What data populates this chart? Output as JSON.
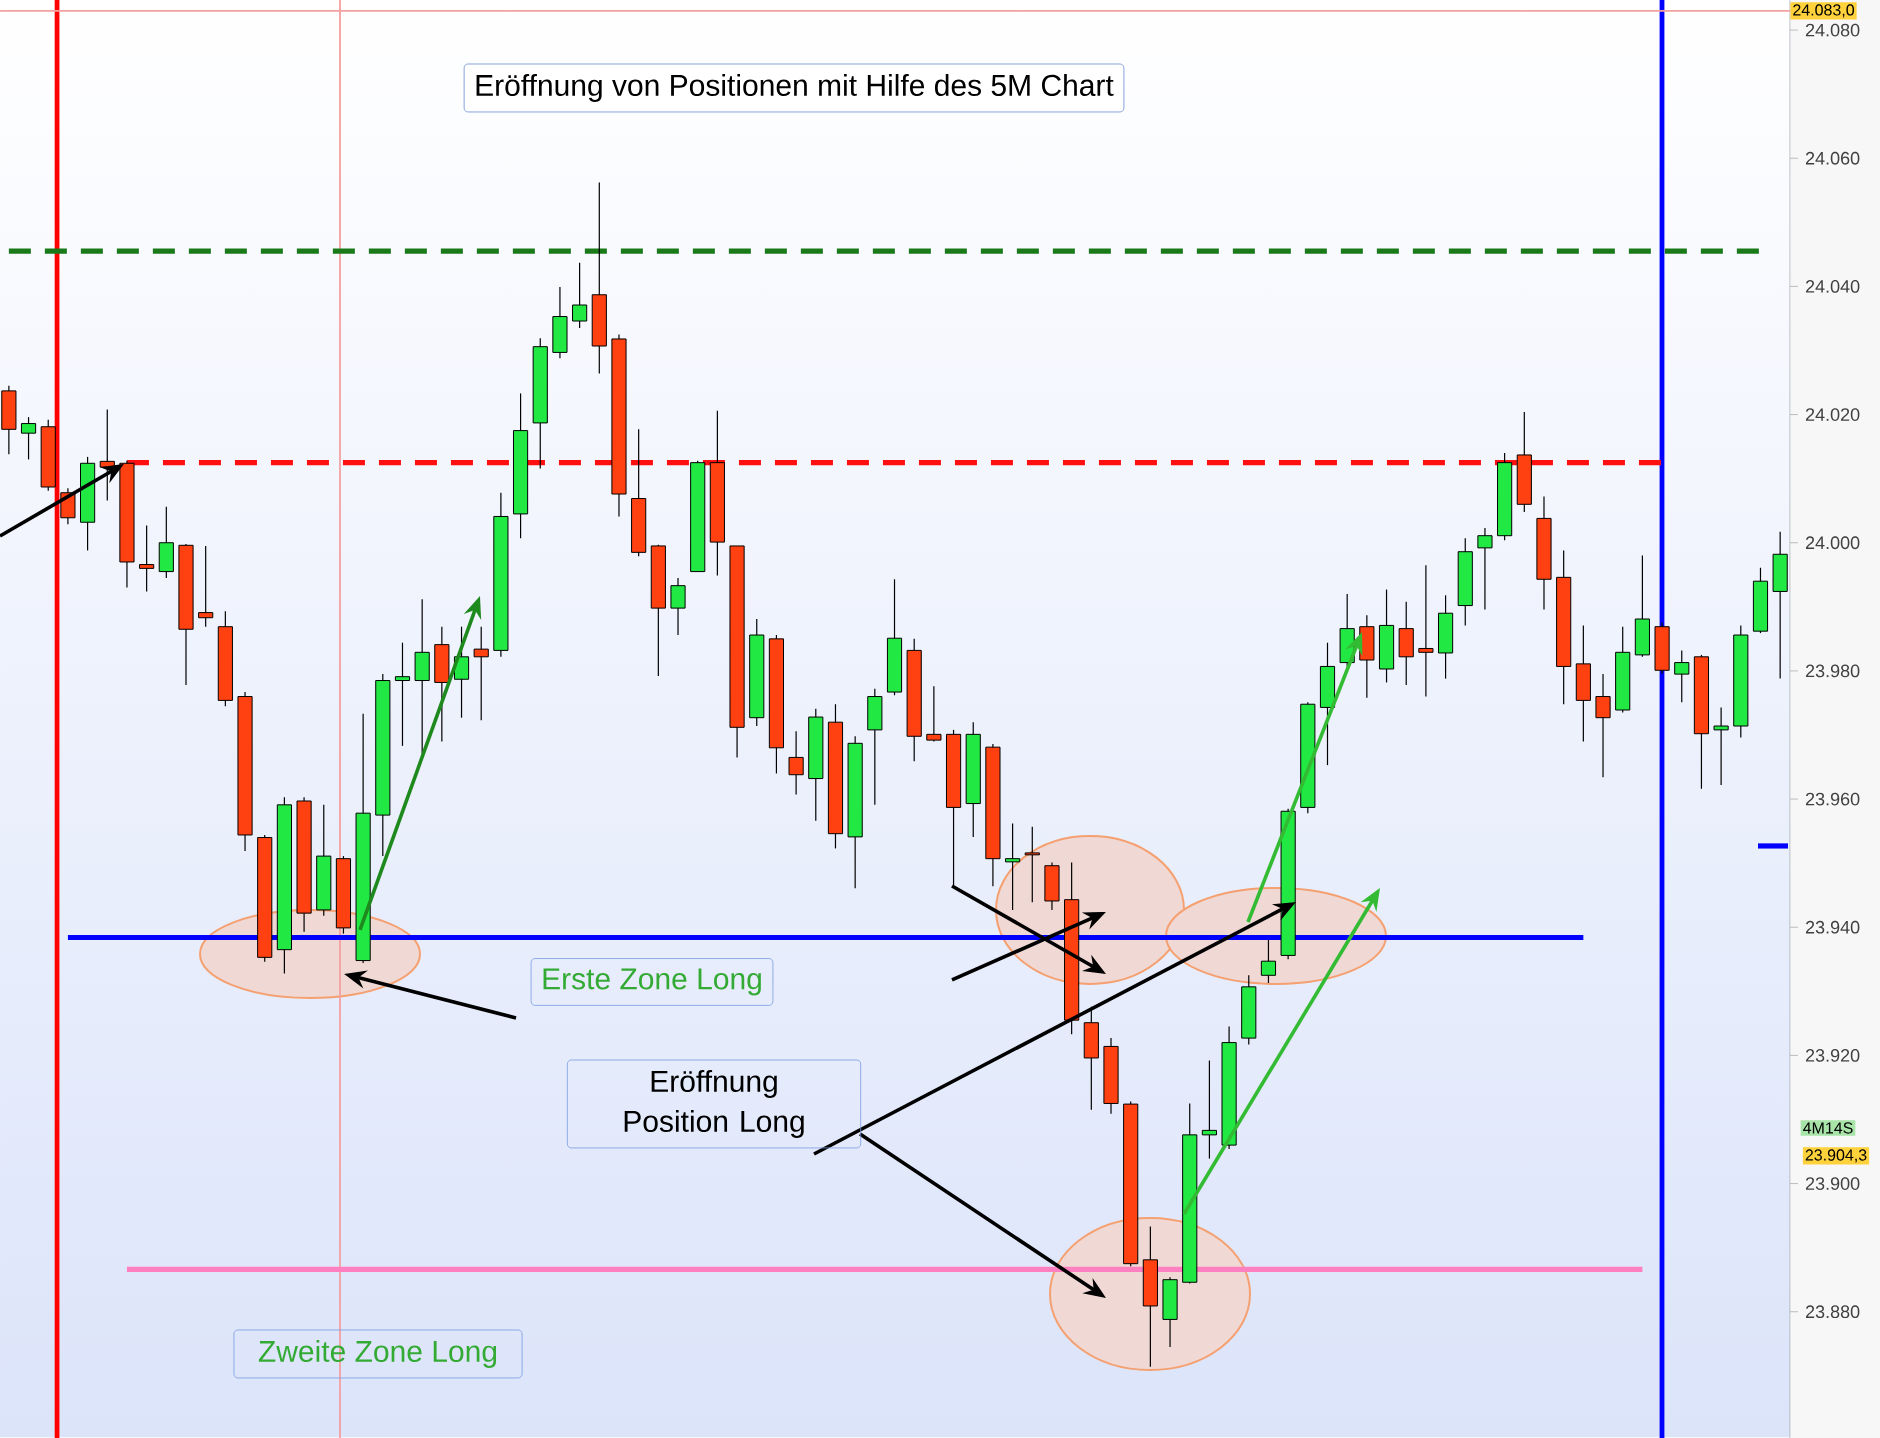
{
  "chart_data": {
    "type": "candlestick",
    "title": "Eröffnung von Positionen mit Hilfe des 5M Chart",
    "categories": [
      null,
      null,
      null,
      null,
      null,
      null,
      null,
      null,
      null,
      null,
      null,
      null,
      null,
      null,
      null,
      null,
      null,
      null,
      null,
      null,
      null,
      null,
      null,
      null,
      null,
      null,
      null,
      null,
      null,
      null,
      null,
      null,
      null,
      null,
      null,
      null,
      null,
      null,
      null,
      null,
      null,
      null,
      null,
      null,
      null,
      null,
      null,
      null,
      null,
      null,
      null,
      null,
      null,
      null,
      null,
      null,
      null,
      null,
      null,
      null,
      null,
      null,
      null,
      null,
      null,
      null,
      null,
      null,
      null,
      null,
      null,
      null,
      null,
      null,
      null,
      null,
      null,
      null,
      null,
      null,
      null,
      null,
      null,
      null,
      null,
      null,
      null,
      null,
      null,
      null,
      null
    ],
    "ohlc": [
      [
        24023.7,
        24024.5,
        24013.8,
        24017.7
      ],
      [
        24017.1,
        24019.6,
        24013.0,
        24018.6
      ],
      [
        24018.1,
        24019.2,
        24008.1,
        24008.7
      ],
      [
        24007.8,
        24008.5,
        24002.9,
        24003.9
      ],
      [
        24003.2,
        24013.4,
        23998.8,
        24012.4
      ],
      [
        24012.7,
        24020.8,
        24006.6,
        24011.8
      ],
      [
        24012.4,
        24012.8,
        23993.0,
        23997.0
      ],
      [
        23996.6,
        24002.7,
        23992.4,
        23996.0
      ],
      [
        23995.5,
        24005.6,
        23994.5,
        24000.0
      ],
      [
        23999.6,
        23999.8,
        23977.8,
        23986.5
      ],
      [
        23989.1,
        23999.5,
        23986.9,
        23988.3
      ],
      [
        23986.9,
        23989.3,
        23974.5,
        23975.4
      ],
      [
        23976.0,
        23976.7,
        23951.9,
        23954.4
      ],
      [
        23954.0,
        23954.4,
        23934.6,
        23935.3
      ],
      [
        23936.5,
        23960.3,
        23932.8,
        23959.1
      ],
      [
        23959.7,
        23960.3,
        23939.3,
        23942.2
      ],
      [
        23942.7,
        23959.1,
        23941.8,
        23951.1
      ],
      [
        23950.7,
        23951.1,
        23939.0,
        23939.9
      ],
      [
        23934.8,
        23973.3,
        23934.4,
        23957.8
      ],
      [
        23957.5,
        23979.5,
        23951.1,
        23978.5
      ],
      [
        23978.5,
        23984.4,
        23968.3,
        23979.1
      ],
      [
        23978.5,
        23991.2,
        23967.1,
        23982.9
      ],
      [
        23984.1,
        23986.9,
        23969.0,
        23978.2
      ],
      [
        23978.7,
        23986.9,
        23972.7,
        23982.2
      ],
      [
        23983.4,
        23986.9,
        23972.3,
        23982.2
      ],
      [
        23983.2,
        24007.8,
        23982.2,
        24004.1
      ],
      [
        24004.5,
        24023.3,
        24000.7,
        24017.5
      ],
      [
        24018.7,
        24031.9,
        24011.6,
        24030.6
      ],
      [
        24029.7,
        24039.9,
        24028.8,
        24035.3
      ],
      [
        24034.6,
        24043.7,
        24033.5,
        24037.1
      ],
      [
        24038.7,
        24056.2,
        24026.4,
        24030.7
      ],
      [
        24031.8,
        24032.5,
        24004.1,
        24007.6
      ],
      [
        24006.9,
        24017.7,
        23997.9,
        23998.5
      ],
      [
        23999.5,
        23999.7,
        23979.2,
        23989.8
      ],
      [
        23989.8,
        23994.5,
        23985.6,
        23993.3
      ],
      [
        23995.5,
        24012.8,
        23995.5,
        24012.5
      ],
      [
        24012.5,
        24020.6,
        23994.9,
        24000.1
      ],
      [
        23999.5,
        23999.5,
        23966.5,
        23971.2
      ],
      [
        23972.7,
        23988.1,
        23971.4,
        23985.6
      ],
      [
        23985.0,
        23985.6,
        23964.0,
        23968.0
      ],
      [
        23966.5,
        23970.6,
        23960.7,
        23963.8
      ],
      [
        23963.2,
        23974.1,
        23956.6,
        23972.8
      ],
      [
        23972.0,
        23974.8,
        23952.3,
        23954.6
      ],
      [
        23954.1,
        23969.8,
        23946.1,
        23968.7
      ],
      [
        23970.8,
        23977.2,
        23959.1,
        23976.0
      ],
      [
        23976.7,
        23994.3,
        23976.2,
        23985.1
      ],
      [
        23983.2,
        23985.0,
        23965.9,
        23969.8
      ],
      [
        23970.1,
        23977.6,
        23969.0,
        23969.2
      ],
      [
        23970.1,
        23970.8,
        23946.4,
        23958.7
      ],
      [
        23959.3,
        23972.0,
        23954.1,
        23970.1
      ],
      [
        23968.1,
        23968.6,
        23946.4,
        23950.7
      ],
      [
        23950.2,
        23956.2,
        23942.7,
        23950.7
      ],
      [
        23951.6,
        23955.7,
        23943.9,
        23951.3
      ],
      [
        23949.6,
        23950.1,
        23942.7,
        23944.1
      ],
      [
        23944.3,
        23950.1,
        23923.3,
        23925.5
      ],
      [
        23925.1,
        23927.6,
        23911.5,
        23919.6
      ],
      [
        23921.4,
        23922.7,
        23910.9,
        23912.5
      ],
      [
        23912.4,
        23912.8,
        23887.1,
        23887.5
      ],
      [
        23888.1,
        23893.3,
        23871.4,
        23880.9
      ],
      [
        23878.8,
        23885.4,
        23874.5,
        23885.0
      ],
      [
        23884.6,
        23912.5,
        23884.4,
        23907.6
      ],
      [
        23907.6,
        23919.2,
        23903.9,
        23908.3
      ],
      [
        23906.0,
        23924.5,
        23905.4,
        23922.0
      ],
      [
        23922.7,
        23932.5,
        23921.7,
        23930.7
      ],
      [
        23932.5,
        23938.0,
        23931.3,
        23934.7
      ],
      [
        23935.6,
        23958.5,
        23935.0,
        23958.1
      ],
      [
        23958.7,
        23975.1,
        23957.8,
        23974.8
      ],
      [
        23974.3,
        23984.4,
        23965.3,
        23980.7
      ],
      [
        23981.3,
        23992.0,
        23980.7,
        23986.6
      ],
      [
        23986.9,
        23988.7,
        23975.8,
        23981.7
      ],
      [
        23980.3,
        23992.7,
        23978.2,
        23987.1
      ],
      [
        23986.6,
        23990.8,
        23977.8,
        23982.2
      ],
      [
        23983.5,
        23996.5,
        23976.0,
        23982.9
      ],
      [
        23982.8,
        23991.8,
        23978.8,
        23989.0
      ],
      [
        23990.2,
        24000.7,
        23987.1,
        23998.6
      ],
      [
        23999.2,
        24002.3,
        23989.6,
        24001.1
      ],
      [
        24001.1,
        24014.0,
        24000.4,
        24012.5
      ],
      [
        24013.7,
        24020.4,
        24004.8,
        24006.0
      ],
      [
        24003.8,
        24007.2,
        23989.6,
        23994.3
      ],
      [
        23994.6,
        23998.8,
        23974.8,
        23980.7
      ],
      [
        23981.1,
        23987.1,
        23969.0,
        23975.4
      ],
      [
        23976.0,
        23979.5,
        23963.4,
        23972.7
      ],
      [
        23973.9,
        23986.9,
        23973.5,
        23982.9
      ],
      [
        23982.5,
        23998.0,
        23982.2,
        23988.1
      ],
      [
        23986.9,
        23987.5,
        23979.5,
        23980.1
      ],
      [
        23979.5,
        23983.2,
        23975.1,
        23981.3
      ],
      [
        23982.2,
        23982.5,
        23961.6,
        23970.2
      ],
      [
        23970.8,
        23974.3,
        23962.2,
        23971.4
      ],
      [
        23971.4,
        23987.1,
        23969.6,
        23985.6
      ],
      [
        23986.2,
        23996.1,
        23985.9,
        23994.0
      ],
      [
        23992.4,
        24001.7,
        23978.8,
        23998.2
      ]
    ],
    "colors": [
      "#ff4010",
      "#22e844",
      "#ff4010",
      "#ff4010",
      "#22e844",
      "#ff4010",
      "#ff4010",
      "#ff4010",
      "#22e844",
      "#ff4010",
      "#ff4010",
      "#ff4010",
      "#ff4010",
      "#ff4010",
      "#22e844",
      "#ff4010",
      "#22e844",
      "#ff4010",
      "#22e844",
      "#22e844",
      "#22e844",
      "#22e844",
      "#ff4010",
      "#22e844",
      "#ff4010",
      "#22e844",
      "#22e844",
      "#22e844",
      "#22e844",
      "#22e844",
      "#ff4010",
      "#ff4010",
      "#ff4010",
      "#ff4010",
      "#22e844",
      "#22e844",
      "#ff4010",
      "#ff4010",
      "#22e844",
      "#ff4010",
      "#ff4010",
      "#22e844",
      "#ff4010",
      "#22e844",
      "#22e844",
      "#22e844",
      "#ff4010",
      "#ff4010",
      "#ff4010",
      "#22e844",
      "#ff4010",
      "#22e844",
      "#ff4010",
      "#ff4010",
      "#ff4010",
      "#ff4010",
      "#ff4010",
      "#ff4010",
      "#ff4010",
      "#22e844",
      "#22e844",
      "#22e844",
      "#22e844",
      "#22e844",
      "#22e844",
      "#22e844",
      "#22e844",
      "#22e844",
      "#22e844",
      "#ff4010",
      "#22e844",
      "#ff4010",
      "#ff4010",
      "#22e844",
      "#22e844",
      "#22e844",
      "#22e844",
      "#ff4010",
      "#ff4010",
      "#ff4010",
      "#ff4010",
      "#ff4010",
      "#22e844",
      "#22e844",
      "#ff4010",
      "#22e844",
      "#ff4010",
      "#22e844",
      "#22e844",
      "#22e844",
      "#22e844"
    ],
    "ylim": [
      23860.3,
      24084.7
    ],
    "yticks": [
      {
        "value": 23880,
        "label": "23.880"
      },
      {
        "value": 23900,
        "label": "23.900"
      },
      {
        "value": 23920,
        "label": "23.920"
      },
      {
        "value": 23940,
        "label": "23.940"
      },
      {
        "value": 23960,
        "label": "23.960"
      },
      {
        "value": 23980,
        "label": "23.980"
      },
      {
        "value": 24000,
        "label": "24.000"
      },
      {
        "value": 24020,
        "label": "24.020"
      },
      {
        "value": 24040,
        "label": "24.040"
      },
      {
        "value": 24060,
        "label": "24.060"
      },
      {
        "value": 24080,
        "label": "24.080"
      }
    ],
    "tick_labels": "y",
    "series": [
      {
        "type": "line",
        "values": [
          24045.5,
          24045.5,
          24045.5,
          24045.5,
          24045.5,
          24045.5,
          24045.5,
          24045.5,
          24045.5,
          24045.5,
          24045.5,
          24045.5,
          24045.5,
          24045.5,
          24045.5,
          24045.5,
          24045.5,
          24045.5,
          24045.5,
          24045.5,
          24045.5,
          24045.5,
          24045.5,
          24045.5,
          24045.5,
          24045.5,
          24045.5,
          24045.5,
          24045.5,
          24045.5,
          24045.5,
          24045.5,
          24045.5,
          24045.5,
          24045.5,
          24045.5,
          24045.5,
          24045.5,
          24045.5,
          24045.5,
          24045.5,
          24045.5,
          24045.5,
          24045.5,
          24045.5,
          24045.5,
          24045.5,
          24045.5,
          24045.5,
          24045.5,
          24045.5,
          24045.5,
          24045.5,
          24045.5,
          24045.5,
          24045.5,
          24045.5,
          24045.5,
          24045.5,
          24045.5,
          24045.5,
          24045.5,
          24045.5,
          24045.5,
          24045.5,
          24045.5,
          24045.5,
          24045.5,
          24045.5,
          24045.5,
          24045.5,
          24045.5,
          24045.5,
          24045.5,
          24045.5,
          24045.5,
          24045.5,
          24045.5,
          24045.5,
          24045.5,
          24045.5,
          24045.5,
          24045.5,
          24045.5,
          24045.5,
          24045.5,
          24045.5,
          24045.5,
          24045.5,
          24045.5,
          null
        ],
        "color": "#1a7a1a",
        "line_style": "dashed"
      },
      {
        "type": "line",
        "values": [
          null,
          null,
          null,
          null,
          null,
          null,
          24012.5,
          24012.5,
          24012.5,
          24012.5,
          24012.5,
          24012.5,
          24012.5,
          24012.5,
          24012.5,
          24012.5,
          24012.5,
          24012.5,
          24012.5,
          24012.5,
          24012.5,
          24012.5,
          24012.5,
          24012.5,
          24012.5,
          24012.5,
          24012.5,
          24012.5,
          24012.5,
          24012.5,
          24012.5,
          24012.5,
          24012.5,
          24012.5,
          24012.5,
          24012.5,
          24012.5,
          24012.5,
          24012.5,
          24012.5,
          24012.5,
          24012.5,
          24012.5,
          24012.5,
          24012.5,
          24012.5,
          24012.5,
          24012.5,
          24012.5,
          24012.5,
          24012.5,
          24012.5,
          24012.5,
          24012.5,
          24012.5,
          24012.5,
          24012.5,
          24012.5,
          24012.5,
          24012.5,
          24012.5,
          24012.5,
          24012.5,
          24012.5,
          24012.5,
          24012.5,
          24012.5,
          24012.5,
          24012.5,
          24012.5,
          24012.5,
          24012.5,
          24012.5,
          24012.5,
          24012.5,
          24012.5,
          24012.5,
          24012.5,
          24012.5,
          24012.5,
          24012.5,
          24012.5,
          24012.5,
          24012.5,
          24012.5,
          null,
          null,
          null,
          null,
          null,
          null
        ],
        "color": "#ff1010",
        "line_style": "dashed"
      },
      {
        "type": "line",
        "values": [
          null,
          null,
          null,
          23938.4,
          23938.4,
          23938.4,
          23938.4,
          23938.4,
          23938.4,
          23938.4,
          23938.4,
          23938.4,
          23938.4,
          23938.4,
          23938.4,
          23938.4,
          23938.4,
          23938.4,
          23938.4,
          23938.4,
          23938.4,
          23938.4,
          23938.4,
          23938.4,
          23938.4,
          23938.4,
          23938.4,
          23938.4,
          23938.4,
          23938.4,
          23938.4,
          23938.4,
          23938.4,
          23938.4,
          23938.4,
          23938.4,
          23938.4,
          23938.4,
          23938.4,
          23938.4,
          23938.4,
          23938.4,
          23938.4,
          23938.4,
          23938.4,
          23938.4,
          23938.4,
          23938.4,
          23938.4,
          23938.4,
          23938.4,
          23938.4,
          23938.4,
          23938.4,
          23938.4,
          23938.4,
          23938.4,
          23938.4,
          23938.4,
          23938.4,
          23938.4,
          23938.4,
          23938.4,
          23938.4,
          23938.4,
          23938.4,
          23938.4,
          23938.4,
          23938.4,
          23938.4,
          23938.4,
          23938.4,
          23938.4,
          23938.4,
          23938.4,
          23938.4,
          23938.4,
          23938.4,
          23938.4,
          23938.4,
          23938.4,
          null,
          null,
          null,
          null,
          null,
          null,
          null,
          null,
          null,
          null
        ],
        "color": "#0000ff",
        "line_style": "solid"
      },
      {
        "type": "line",
        "values": [
          null,
          null,
          null,
          null,
          null,
          null,
          23886.6,
          23886.6,
          23886.6,
          23886.6,
          23886.6,
          23886.6,
          23886.6,
          23886.6,
          23886.6,
          23886.6,
          23886.6,
          23886.6,
          23886.6,
          23886.6,
          23886.6,
          23886.6,
          23886.6,
          23886.6,
          23886.6,
          23886.6,
          23886.6,
          23886.6,
          23886.6,
          23886.6,
          23886.6,
          23886.6,
          23886.6,
          23886.6,
          23886.6,
          23886.6,
          23886.6,
          23886.6,
          23886.6,
          23886.6,
          23886.6,
          23886.6,
          23886.6,
          23886.6,
          23886.6,
          23886.6,
          23886.6,
          23886.6,
          23886.6,
          23886.6,
          23886.6,
          23886.6,
          23886.6,
          23886.6,
          23886.6,
          23886.6,
          23886.6,
          23886.6,
          23886.6,
          23886.6,
          23886.6,
          23886.6,
          23886.6,
          23886.6,
          23886.6,
          23886.6,
          23886.6,
          23886.6,
          23886.6,
          23886.6,
          23886.6,
          23886.6,
          23886.6,
          23886.6,
          23886.6,
          23886.6,
          23886.6,
          23886.6,
          23886.6,
          23886.6,
          23886.6,
          23886.6,
          23886.6,
          23886.6,
          null,
          null,
          null,
          null,
          null,
          null,
          null
        ],
        "color": "#ff80c0",
        "line_style": "solid"
      }
    ],
    "ref_lines": [
      {
        "axis": "y",
        "value": 24083,
        "label": "24.083,0",
        "color": "#f4a0a0"
      }
    ],
    "annotations": [
      "Erste Zone Long",
      "Eröffnung Position Long",
      "Zweite Zone Long",
      "23.904,3",
      "4M14S"
    ]
  }
}
